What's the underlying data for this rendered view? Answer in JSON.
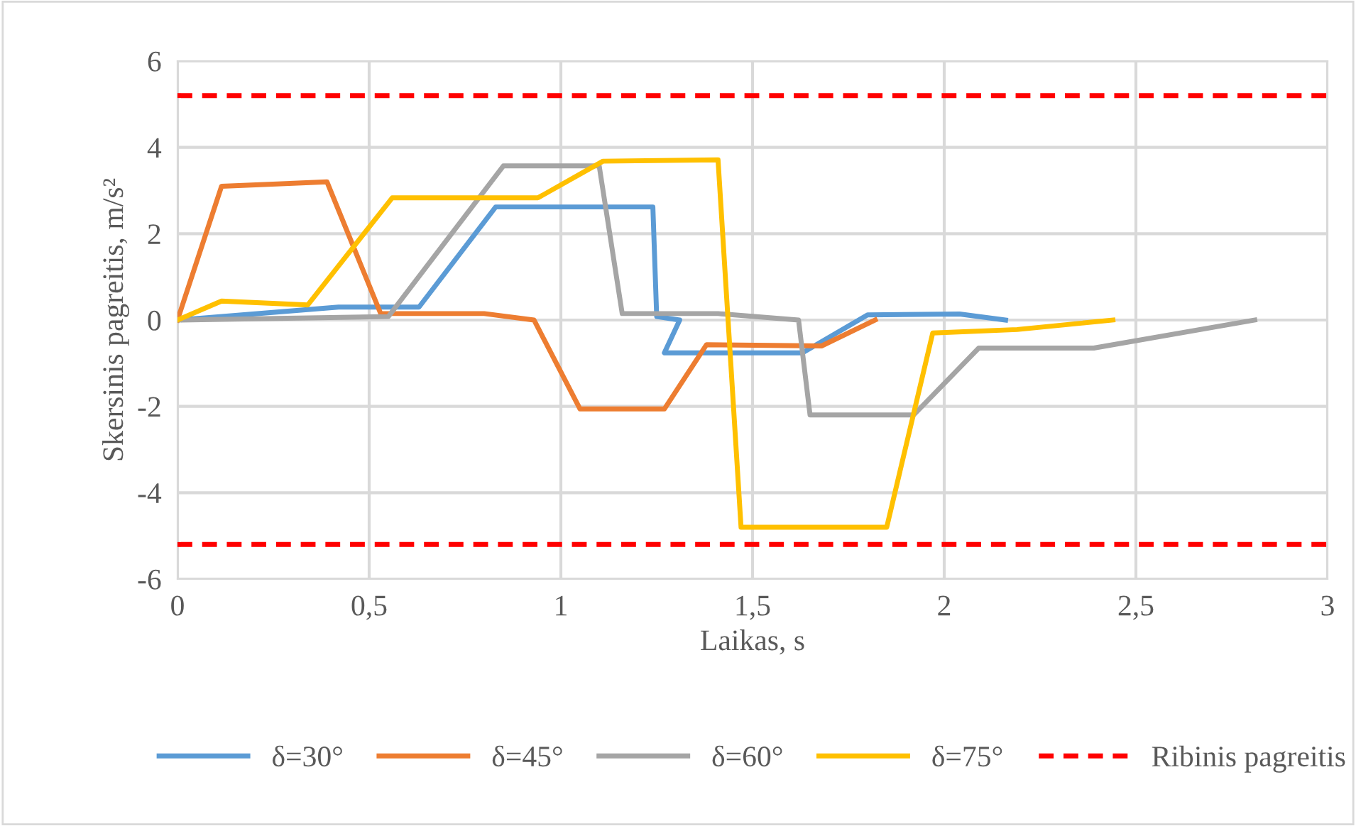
{
  "chart_data": {
    "type": "line",
    "xlabel": "Laikas, s",
    "ylabel": "Skersinis pagreitis, m/s²",
    "xlim": [
      0,
      3
    ],
    "ylim": [
      -6,
      6
    ],
    "xticks": [
      0,
      {
        "value": 0.5,
        "label": "0,5"
      },
      1,
      {
        "value": 1.5,
        "label": "1,5"
      },
      2,
      {
        "value": 2.5,
        "label": "2,5"
      },
      3
    ],
    "yticks": [
      -6,
      -4,
      -2,
      0,
      2,
      4,
      6
    ],
    "grid": true,
    "legend": "bottom",
    "line_style": "solid",
    "marker": "none",
    "series": [
      {
        "name": "δ=30°",
        "color": "#5b9bd5",
        "x": [
          0,
          0.42,
          0.63,
          0.83,
          1.24,
          1.25,
          1.31,
          1.27,
          1.63,
          1.8,
          2.04,
          2.16
        ],
        "values": [
          0,
          0.3,
          0.3,
          2.62,
          2.62,
          0.08,
          0,
          -0.76,
          -0.76,
          0.12,
          0.14,
          0
        ]
      },
      {
        "name": "δ=45°",
        "color": "#ed7d31",
        "x": [
          0,
          0.115,
          0.39,
          0.53,
          0.8,
          0.93,
          1.05,
          1.27,
          1.38,
          1.68,
          1.82
        ],
        "values": [
          0,
          3.1,
          3.2,
          0.15,
          0.15,
          0,
          -2.06,
          -2.06,
          -0.57,
          -0.6,
          0
        ]
      },
      {
        "name": "δ=60°",
        "color": "#a5a5a5",
        "x": [
          0,
          0.55,
          0.85,
          1.1,
          1.16,
          1.41,
          1.62,
          1.65,
          1.92,
          2.09,
          2.39,
          2.81
        ],
        "values": [
          0,
          0.08,
          3.57,
          3.57,
          0.15,
          0.15,
          0,
          -2.2,
          -2.2,
          -0.65,
          -0.65,
          0
        ]
      },
      {
        "name": "δ=75°",
        "color": "#ffc000",
        "x": [
          0,
          0.115,
          0.34,
          0.56,
          0.94,
          1.11,
          1.41,
          1.47,
          1.85,
          1.97,
          2.19,
          2.44
        ],
        "values": [
          0,
          0.44,
          0.35,
          2.83,
          2.83,
          3.68,
          3.71,
          -4.8,
          -4.8,
          -0.3,
          -0.22,
          0
        ]
      },
      {
        "name": "Ribinis pagreitis",
        "color": "#ff0000",
        "line_style": "dashed",
        "x": [
          0,
          3
        ],
        "values": [
          5.2,
          5.2
        ]
      },
      {
        "color": "#ff0000",
        "line_style": "dashed",
        "x": [
          0,
          3
        ],
        "values": [
          -5.2,
          -5.2
        ]
      }
    ]
  }
}
